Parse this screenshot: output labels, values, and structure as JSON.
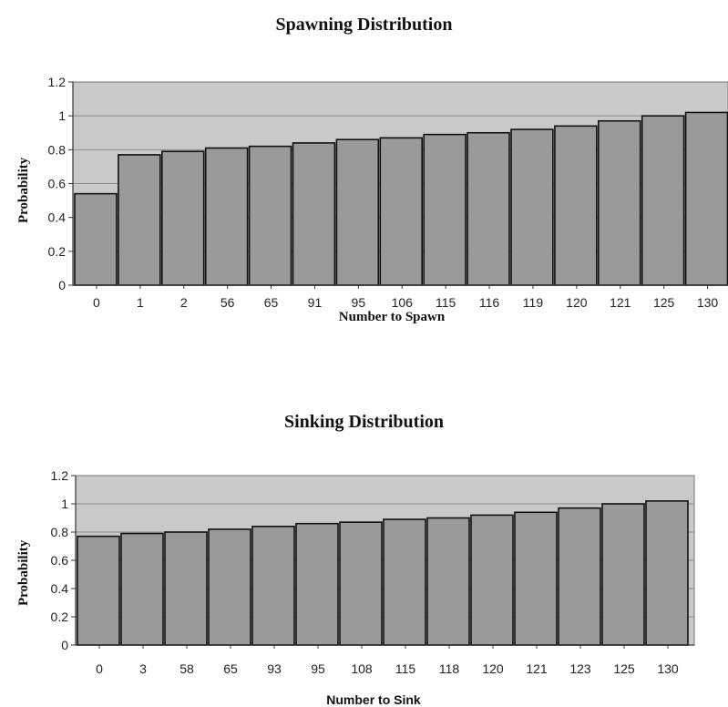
{
  "chart_data": [
    {
      "type": "bar",
      "title": "Spawning Distribution",
      "xlabel": "Number to Spawn",
      "ylabel": "Probability",
      "categories": [
        "0",
        "1",
        "2",
        "56",
        "65",
        "91",
        "95",
        "106",
        "115",
        "116",
        "119",
        "120",
        "121",
        "125",
        "130"
      ],
      "values": [
        0.54,
        0.77,
        0.79,
        0.81,
        0.82,
        0.84,
        0.86,
        0.87,
        0.89,
        0.9,
        0.92,
        0.94,
        0.97,
        1.0,
        1.02
      ],
      "ylim": [
        0,
        1.2
      ],
      "yticks": [
        "0",
        "0.2",
        "0.4",
        "0.6",
        "0.8",
        "1",
        "1.2"
      ],
      "grid": true,
      "colors": {
        "plot_bg": "#c9c9c9",
        "bar": "#9a9a9a",
        "bar_edge": "#111111"
      }
    },
    {
      "type": "bar",
      "title": "Sinking Distribution",
      "xlabel": "Number to Sink",
      "ylabel": "Probability",
      "categories": [
        "0",
        "3",
        "58",
        "65",
        "93",
        "95",
        "108",
        "115",
        "118",
        "120",
        "121",
        "123",
        "125",
        "130"
      ],
      "values": [
        0.77,
        0.79,
        0.8,
        0.82,
        0.84,
        0.86,
        0.87,
        0.89,
        0.9,
        0.92,
        0.94,
        0.97,
        1.0,
        1.02
      ],
      "ylim": [
        0,
        1.2
      ],
      "yticks": [
        "0",
        "0.2",
        "0.4",
        "0.6",
        "0.8",
        "1",
        "1.2"
      ],
      "grid": true,
      "colors": {
        "plot_bg": "#c9c9c9",
        "bar": "#9a9a9a",
        "bar_edge": "#111111"
      }
    }
  ]
}
